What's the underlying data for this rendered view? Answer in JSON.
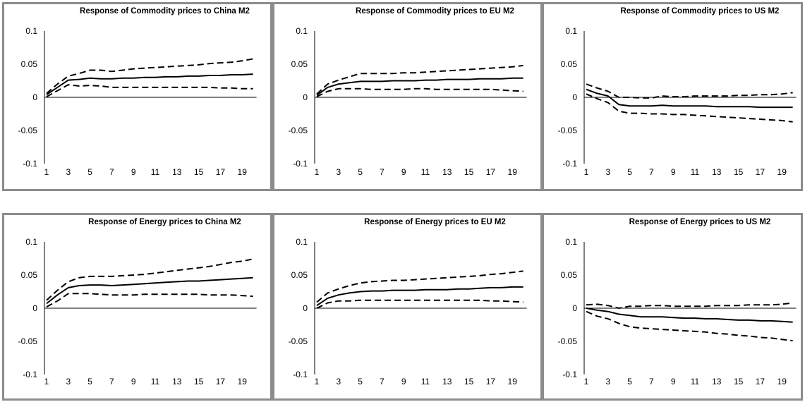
{
  "chart_data": [
    {
      "type": "line",
      "title": "Response of Commodity prices to China M2",
      "x": [
        1,
        2,
        3,
        4,
        5,
        6,
        7,
        8,
        9,
        10,
        11,
        12,
        13,
        14,
        15,
        16,
        17,
        18,
        19,
        20
      ],
      "xticks": [
        "1",
        "3",
        "5",
        "7",
        "9",
        "11",
        "13",
        "15",
        "17",
        "19"
      ],
      "yticks": [
        "0.1",
        "0.05",
        "0",
        "-0.05",
        "-0.1"
      ],
      "ylim": [
        -0.1,
        0.1
      ],
      "series": [
        {
          "style": "dashed",
          "values": [
            0.006,
            0.02,
            0.032,
            0.036,
            0.041,
            0.041,
            0.039,
            0.041,
            0.043,
            0.044,
            0.045,
            0.046,
            0.047,
            0.048,
            0.049,
            0.051,
            0.052,
            0.053,
            0.055,
            0.058
          ]
        },
        {
          "style": "solid",
          "values": [
            0.004,
            0.015,
            0.026,
            0.027,
            0.029,
            0.028,
            0.028,
            0.029,
            0.029,
            0.03,
            0.03,
            0.031,
            0.031,
            0.032,
            0.032,
            0.033,
            0.033,
            0.034,
            0.034,
            0.035
          ]
        },
        {
          "style": "dashed",
          "values": [
            0.001,
            0.01,
            0.019,
            0.017,
            0.018,
            0.017,
            0.015,
            0.015,
            0.015,
            0.015,
            0.015,
            0.015,
            0.015,
            0.015,
            0.015,
            0.015,
            0.014,
            0.014,
            0.013,
            0.013
          ]
        }
      ]
    },
    {
      "type": "line",
      "title": "Response of Commodity prices to EU M2",
      "x": [
        1,
        2,
        3,
        4,
        5,
        6,
        7,
        8,
        9,
        10,
        11,
        12,
        13,
        14,
        15,
        16,
        17,
        18,
        19,
        20
      ],
      "xticks": [
        "1",
        "3",
        "5",
        "7",
        "9",
        "11",
        "13",
        "15",
        "17",
        "19"
      ],
      "yticks": [
        "0.1",
        "0.05",
        "0",
        "-0.05",
        "-0.1"
      ],
      "ylim": [
        -0.1,
        0.1
      ],
      "series": [
        {
          "style": "dashed",
          "values": [
            0.005,
            0.02,
            0.026,
            0.031,
            0.036,
            0.036,
            0.036,
            0.036,
            0.037,
            0.037,
            0.038,
            0.039,
            0.04,
            0.041,
            0.042,
            0.043,
            0.044,
            0.045,
            0.046,
            0.048
          ]
        },
        {
          "style": "solid",
          "values": [
            0.003,
            0.015,
            0.02,
            0.022,
            0.024,
            0.024,
            0.024,
            0.025,
            0.025,
            0.025,
            0.026,
            0.026,
            0.027,
            0.027,
            0.027,
            0.028,
            0.028,
            0.028,
            0.029,
            0.029
          ]
        },
        {
          "style": "dashed",
          "values": [
            0.001,
            0.009,
            0.013,
            0.013,
            0.013,
            0.012,
            0.012,
            0.012,
            0.012,
            0.013,
            0.013,
            0.012,
            0.012,
            0.012,
            0.012,
            0.012,
            0.012,
            0.011,
            0.01,
            0.009
          ]
        }
      ]
    },
    {
      "type": "line",
      "title": "Response of Commodity prices to US M2",
      "x": [
        1,
        2,
        3,
        4,
        5,
        6,
        7,
        8,
        9,
        10,
        11,
        12,
        13,
        14,
        15,
        16,
        17,
        18,
        19,
        20
      ],
      "xticks": [
        "1",
        "3",
        "5",
        "7",
        "9",
        "11",
        "13",
        "15",
        "17",
        "19"
      ],
      "yticks": [
        "0.1",
        "0.05",
        "0",
        "-0.05",
        "-0.1"
      ],
      "ylim": [
        -0.1,
        0.1
      ],
      "series": [
        {
          "style": "dashed",
          "values": [
            0.02,
            0.014,
            0.009,
            0.0,
            0.0,
            -0.001,
            -0.001,
            0.002,
            0.001,
            0.001,
            0.002,
            0.002,
            0.002,
            0.002,
            0.003,
            0.003,
            0.004,
            0.004,
            0.005,
            0.007
          ]
        },
        {
          "style": "solid",
          "values": [
            0.012,
            0.006,
            0.002,
            -0.011,
            -0.013,
            -0.013,
            -0.013,
            -0.012,
            -0.013,
            -0.013,
            -0.013,
            -0.013,
            -0.014,
            -0.014,
            -0.014,
            -0.014,
            -0.015,
            -0.015,
            -0.015,
            -0.015
          ]
        },
        {
          "style": "dashed",
          "values": [
            0.005,
            -0.002,
            -0.008,
            -0.021,
            -0.024,
            -0.024,
            -0.025,
            -0.025,
            -0.026,
            -0.026,
            -0.027,
            -0.028,
            -0.029,
            -0.03,
            -0.031,
            -0.032,
            -0.033,
            -0.034,
            -0.035,
            -0.037
          ]
        }
      ]
    },
    {
      "type": "line",
      "title": "Response of Energy prices to China M2",
      "x": [
        1,
        2,
        3,
        4,
        5,
        6,
        7,
        8,
        9,
        10,
        11,
        12,
        13,
        14,
        15,
        16,
        17,
        18,
        19,
        20
      ],
      "xticks": [
        "1",
        "3",
        "5",
        "7",
        "9",
        "11",
        "13",
        "15",
        "17",
        "19"
      ],
      "yticks": [
        "0.1",
        "0.05",
        "0",
        "-0.05",
        "-0.1"
      ],
      "ylim": [
        -0.1,
        0.1
      ],
      "series": [
        {
          "style": "dashed",
          "values": [
            0.012,
            0.027,
            0.04,
            0.046,
            0.048,
            0.048,
            0.048,
            0.049,
            0.05,
            0.051,
            0.053,
            0.055,
            0.057,
            0.059,
            0.061,
            0.063,
            0.066,
            0.069,
            0.071,
            0.074
          ]
        },
        {
          "style": "solid",
          "values": [
            0.007,
            0.02,
            0.031,
            0.034,
            0.035,
            0.035,
            0.034,
            0.035,
            0.036,
            0.037,
            0.038,
            0.039,
            0.04,
            0.041,
            0.041,
            0.042,
            0.043,
            0.044,
            0.045,
            0.046
          ]
        },
        {
          "style": "dashed",
          "values": [
            0.002,
            0.011,
            0.022,
            0.022,
            0.022,
            0.021,
            0.02,
            0.02,
            0.02,
            0.021,
            0.021,
            0.021,
            0.021,
            0.021,
            0.021,
            0.02,
            0.02,
            0.02,
            0.019,
            0.018
          ]
        }
      ]
    },
    {
      "type": "line",
      "title": "Response of Energy prices to EU M2",
      "x": [
        1,
        2,
        3,
        4,
        5,
        6,
        7,
        8,
        9,
        10,
        11,
        12,
        13,
        14,
        15,
        16,
        17,
        18,
        19,
        20
      ],
      "xticks": [
        "1",
        "3",
        "5",
        "7",
        "9",
        "11",
        "13",
        "15",
        "17",
        "19"
      ],
      "yticks": [
        "0.1",
        "0.05",
        "0",
        "-0.05",
        "-0.1"
      ],
      "ylim": [
        -0.1,
        0.1
      ],
      "series": [
        {
          "style": "dashed",
          "values": [
            0.009,
            0.023,
            0.029,
            0.034,
            0.038,
            0.04,
            0.041,
            0.042,
            0.042,
            0.043,
            0.044,
            0.045,
            0.046,
            0.047,
            0.048,
            0.049,
            0.051,
            0.052,
            0.054,
            0.056
          ]
        },
        {
          "style": "solid",
          "values": [
            0.004,
            0.015,
            0.02,
            0.023,
            0.025,
            0.026,
            0.026,
            0.027,
            0.027,
            0.027,
            0.028,
            0.028,
            0.028,
            0.029,
            0.029,
            0.03,
            0.031,
            0.031,
            0.032,
            0.032
          ]
        },
        {
          "style": "dashed",
          "values": [
            0.0,
            0.008,
            0.011,
            0.011,
            0.012,
            0.012,
            0.012,
            0.012,
            0.012,
            0.012,
            0.012,
            0.012,
            0.012,
            0.012,
            0.012,
            0.012,
            0.011,
            0.011,
            0.01,
            0.009
          ]
        }
      ]
    },
    {
      "type": "line",
      "title": "Response of Energy prices to US M2",
      "x": [
        1,
        2,
        3,
        4,
        5,
        6,
        7,
        8,
        9,
        10,
        11,
        12,
        13,
        14,
        15,
        16,
        17,
        18,
        19,
        20
      ],
      "xticks": [
        "1",
        "3",
        "5",
        "7",
        "9",
        "11",
        "13",
        "15",
        "17",
        "19"
      ],
      "yticks": [
        "0.1",
        "0.05",
        "0",
        "-0.05",
        "-0.1"
      ],
      "ylim": [
        -0.1,
        0.1
      ],
      "series": [
        {
          "style": "dashed",
          "values": [
            0.005,
            0.006,
            0.004,
            0.0,
            0.003,
            0.003,
            0.004,
            0.004,
            0.003,
            0.003,
            0.003,
            0.003,
            0.004,
            0.004,
            0.004,
            0.005,
            0.005,
            0.005,
            0.006,
            0.008
          ]
        },
        {
          "style": "solid",
          "values": [
            0.0,
            -0.003,
            -0.005,
            -0.009,
            -0.011,
            -0.013,
            -0.013,
            -0.013,
            -0.014,
            -0.015,
            -0.015,
            -0.016,
            -0.016,
            -0.017,
            -0.018,
            -0.018,
            -0.019,
            -0.019,
            -0.02,
            -0.021
          ]
        },
        {
          "style": "dashed",
          "values": [
            -0.005,
            -0.012,
            -0.016,
            -0.023,
            -0.028,
            -0.03,
            -0.031,
            -0.032,
            -0.033,
            -0.034,
            -0.035,
            -0.036,
            -0.038,
            -0.039,
            -0.041,
            -0.042,
            -0.044,
            -0.045,
            -0.047,
            -0.049
          ]
        }
      ]
    }
  ]
}
